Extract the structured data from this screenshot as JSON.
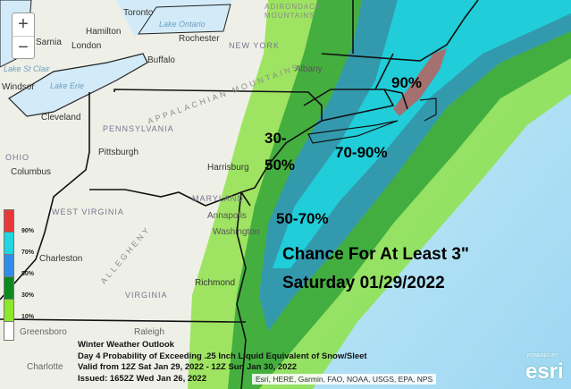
{
  "map": {
    "zoom_in": "+",
    "zoom_out": "−",
    "colors": {
      "p10": "#8fe24a",
      "p30": "#3aa83c",
      "p50": "#3399b4",
      "p70": "#20cdd9",
      "p90": "#a57070",
      "ocean": "#bfe7f6",
      "land": "#eef0e7",
      "lake": "#d3ebf8"
    },
    "cities": [
      "Toronto",
      "Hamilton",
      "London",
      "Buffalo",
      "Rochester",
      "Cleveland",
      "Pittsburgh",
      "Columbus",
      "Harrisburg",
      "Annapolis",
      "Washington",
      "Richmond",
      "Charleston",
      "Greensboro",
      "Charlotte",
      "Sarnia",
      "Windsor",
      "Albany",
      "Raleigh"
    ],
    "states": [
      "NEW YORK",
      "PENNSYLVANIA",
      "OHIO",
      "WEST VIRGINIA",
      "VIRGINIA",
      "MARYLAND"
    ],
    "water": [
      "Lake Ontario",
      "Lake Erie",
      "Lake St Clair"
    ],
    "mountains": [
      "APPALACHIAN MOUNTAINS",
      "ALLEGHENY",
      "ADIRONDACK MOUNTAINS"
    ]
  },
  "overlay": {
    "label_90": "90%",
    "label_70_90": "70-90%",
    "label_30": "30-",
    "label_50": "50%",
    "label_50_70": "50-70%",
    "headline1": "Chance For At Least 3\"",
    "headline2": "Saturday 01/29/2022"
  },
  "legend": {
    "items": [
      {
        "label": "",
        "color": "#e8383a"
      },
      {
        "label": "90%",
        "color": "#20d6e0"
      },
      {
        "label": "70%",
        "color": "#2f8fe8"
      },
      {
        "label": "50%",
        "color": "#0d8a1e"
      },
      {
        "label": "30%",
        "color": "#8de82a"
      },
      {
        "label": "10%",
        "color": "#ffffff"
      }
    ]
  },
  "info": {
    "line1": "Winter Weather Outlook",
    "line2": "Day 4 Probability of Exceeding .25 Inch Liquid Equivalent of Snow/Sleet",
    "line3": "Valid from 12Z Sat Jan 29, 2022 - 12Z Sun Jan 30, 2022",
    "line4": "Issued: 1652Z Wed Jan 26, 2022"
  },
  "attribution": "Esri, HERE, Garmin, FAO, NOAA, USGS, EPA, NPS",
  "esri_logo": {
    "small": "POWERED BY",
    "text": "esri"
  }
}
